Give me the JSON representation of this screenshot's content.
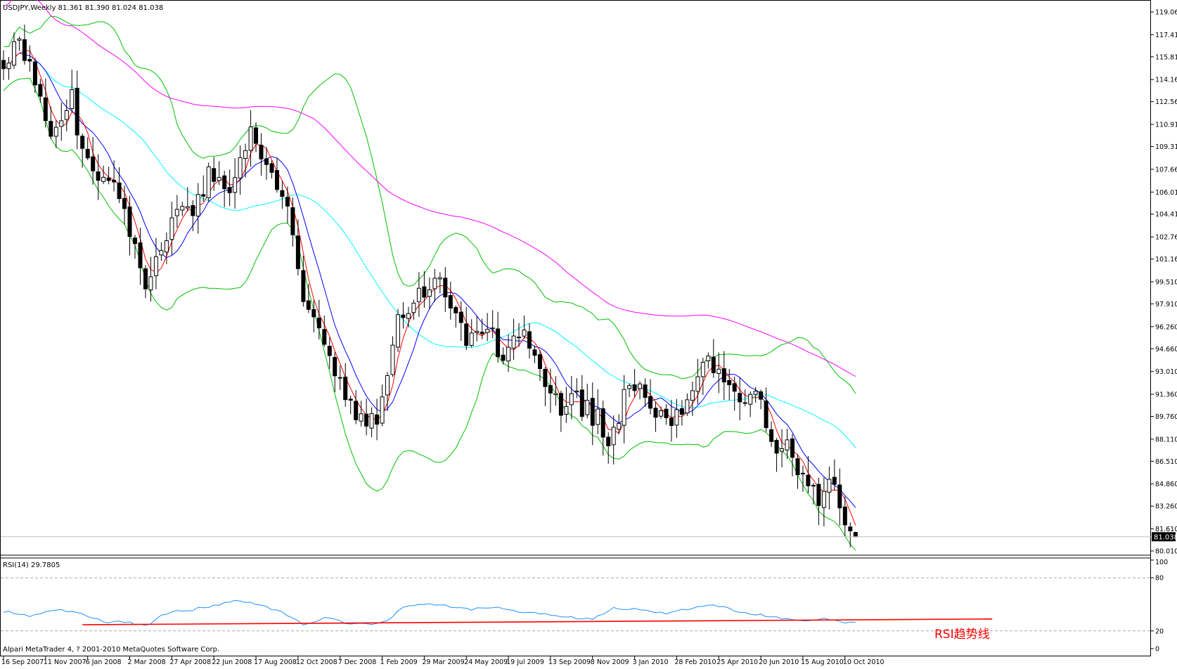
{
  "main_panel": {
    "header": "USDJPY,Weekly  81.361 81.390 81.024 81.038",
    "price_axis_labels": [
      "119.060",
      "117.410",
      "115.810",
      "114.160",
      "112.560",
      "110.910",
      "109.310",
      "107.660",
      "106.010",
      "104.410",
      "102.760",
      "101.160",
      "99.510",
      "97.910",
      "96.260",
      "94.660",
      "93.010",
      "91.360",
      "89.760",
      "88.110",
      "86.510",
      "84.860",
      "83.260",
      "81.610",
      "80.010"
    ],
    "current_price": "81.038"
  },
  "rsi_panel": {
    "header": "RSI(14) 29.7805",
    "axis_labels": [
      "100",
      "80",
      "20",
      "0"
    ],
    "trendline_label": "RSI趋势线",
    "copyright": "Alpari MetaTrader 4, ? 2001-2010 MetaQuotes Software Corp."
  },
  "time_axis_labels": [
    "16 Sep 2007",
    "11 Nov 2007",
    "6 Jan 2008",
    "2 Mar 2008",
    "27 Apr 2008",
    "22 Jun 2008",
    "17 Aug 2008",
    "12 Oct 2008",
    "7 Dec 2008",
    "1 Feb 2009",
    "29 Mar 2009",
    "24 May 2009",
    "19 Jul 2009",
    "13 Sep 2009",
    "8 Nov 2009",
    "3 Jan 2010",
    "28 Feb 2010",
    "25 Apr 2010",
    "20 Jun 2010",
    "15 Aug 2010",
    "10 Oct 2010"
  ],
  "colors": {
    "up_candle_fill": "#ffffff",
    "down_candle_fill": "#000000",
    "ma_fast": "#ff0000",
    "ma_medium": "#0000ff",
    "ma_slow": "#00ffff",
    "ma_long": "#ff00ff",
    "bollinger": "#00c000",
    "rsi_line": "#1e90ff",
    "rsi_trendline": "#ff0000",
    "annotation": "#ff0000"
  },
  "chart_data": {
    "type": "candlestick",
    "symbol": "USDJPY",
    "timeframe": "Weekly",
    "last_bar": {
      "open": 81.361,
      "high": 81.39,
      "low": 81.024,
      "close": 81.038
    },
    "ylim": [
      80.01,
      119.06
    ],
    "rsi_period": 14,
    "rsi_last": 29.7805,
    "rsi_levels": [
      20,
      80
    ],
    "anchors": [
      [
        "2007-09-16",
        115.5
      ],
      [
        "2007-10-07",
        117.0
      ],
      [
        "2007-10-28",
        114.2
      ],
      [
        "2007-11-18",
        110.5
      ],
      [
        "2007-12-16",
        112.8
      ],
      [
        "2007-12-30",
        109.0
      ],
      [
        "2008-01-20",
        106.8
      ],
      [
        "2008-02-10",
        107.2
      ],
      [
        "2008-03-09",
        101.5
      ],
      [
        "2008-03-23",
        98.5
      ],
      [
        "2008-04-13",
        102.5
      ],
      [
        "2008-05-04",
        104.5
      ],
      [
        "2008-05-25",
        104.0
      ],
      [
        "2008-06-15",
        107.5
      ],
      [
        "2008-07-13",
        105.8
      ],
      [
        "2008-08-10",
        110.0
      ],
      [
        "2008-08-31",
        108.3
      ],
      [
        "2008-09-28",
        104.5
      ],
      [
        "2008-10-19",
        97.5
      ],
      [
        "2008-11-09",
        96.5
      ],
      [
        "2008-11-30",
        93.0
      ],
      [
        "2008-12-14",
        90.8
      ],
      [
        "2009-01-11",
        89.5
      ],
      [
        "2009-01-25",
        89.8
      ],
      [
        "2009-02-22",
        96.5
      ],
      [
        "2009-03-15",
        98.2
      ],
      [
        "2009-04-12",
        99.8
      ],
      [
        "2009-05-03",
        97.5
      ],
      [
        "2009-05-24",
        95.5
      ],
      [
        "2009-06-21",
        96.5
      ],
      [
        "2009-07-12",
        93.5
      ],
      [
        "2009-08-09",
        96.2
      ],
      [
        "2009-08-30",
        93.0
      ],
      [
        "2009-09-27",
        90.5
      ],
      [
        "2009-10-18",
        90.8
      ],
      [
        "2009-11-15",
        89.5
      ],
      [
        "2009-11-29",
        87.5
      ],
      [
        "2009-12-20",
        91.0
      ],
      [
        "2010-01-10",
        92.5
      ],
      [
        "2010-01-31",
        89.8
      ],
      [
        "2010-02-21",
        89.5
      ],
      [
        "2010-03-14",
        90.5
      ],
      [
        "2010-04-04",
        94.0
      ],
      [
        "2010-04-25",
        93.5
      ],
      [
        "2010-05-16",
        91.5
      ],
      [
        "2010-06-13",
        91.5
      ],
      [
        "2010-07-04",
        88.0
      ],
      [
        "2010-07-25",
        87.3
      ],
      [
        "2010-08-15",
        85.5
      ],
      [
        "2010-09-05",
        84.0
      ],
      [
        "2010-09-19",
        85.5
      ],
      [
        "2010-10-10",
        82.0
      ],
      [
        "2010-10-24",
        81.04
      ]
    ],
    "rsi_anchors": [
      [
        "2007-09-16",
        42
      ],
      [
        "2007-10-21",
        37
      ],
      [
        "2007-11-25",
        44
      ],
      [
        "2007-12-30",
        39
      ],
      [
        "2008-01-27",
        30
      ],
      [
        "2008-02-24",
        30
      ],
      [
        "2008-03-23",
        26
      ],
      [
        "2008-04-20",
        40
      ],
      [
        "2008-05-25",
        44
      ],
      [
        "2008-06-29",
        50
      ],
      [
        "2008-07-27",
        54
      ],
      [
        "2008-08-24",
        49
      ],
      [
        "2008-09-21",
        41
      ],
      [
        "2008-10-19",
        28
      ],
      [
        "2008-11-23",
        35
      ],
      [
        "2008-12-14",
        29
      ],
      [
        "2009-01-18",
        27
      ],
      [
        "2009-02-08",
        32
      ],
      [
        "2009-03-01",
        47
      ],
      [
        "2009-03-29",
        50
      ],
      [
        "2009-04-26",
        48
      ],
      [
        "2009-05-31",
        44
      ],
      [
        "2009-06-28",
        47
      ],
      [
        "2009-07-26",
        42
      ],
      [
        "2009-08-30",
        40
      ],
      [
        "2009-10-04",
        36
      ],
      [
        "2009-11-08",
        33
      ],
      [
        "2009-12-06",
        45
      ],
      [
        "2010-01-10",
        45
      ],
      [
        "2010-02-14",
        40
      ],
      [
        "2010-03-21",
        45
      ],
      [
        "2010-04-18",
        50
      ],
      [
        "2010-05-16",
        43
      ],
      [
        "2010-06-20",
        38
      ],
      [
        "2010-07-25",
        34
      ],
      [
        "2010-08-22",
        31
      ],
      [
        "2010-09-19",
        34
      ],
      [
        "2010-10-03",
        30
      ],
      [
        "2010-10-24",
        29.78
      ]
    ],
    "rsi_trendline": [
      [
        "2007-12-30",
        27.0
      ],
      [
        "2011-04-24",
        33.5
      ]
    ]
  }
}
